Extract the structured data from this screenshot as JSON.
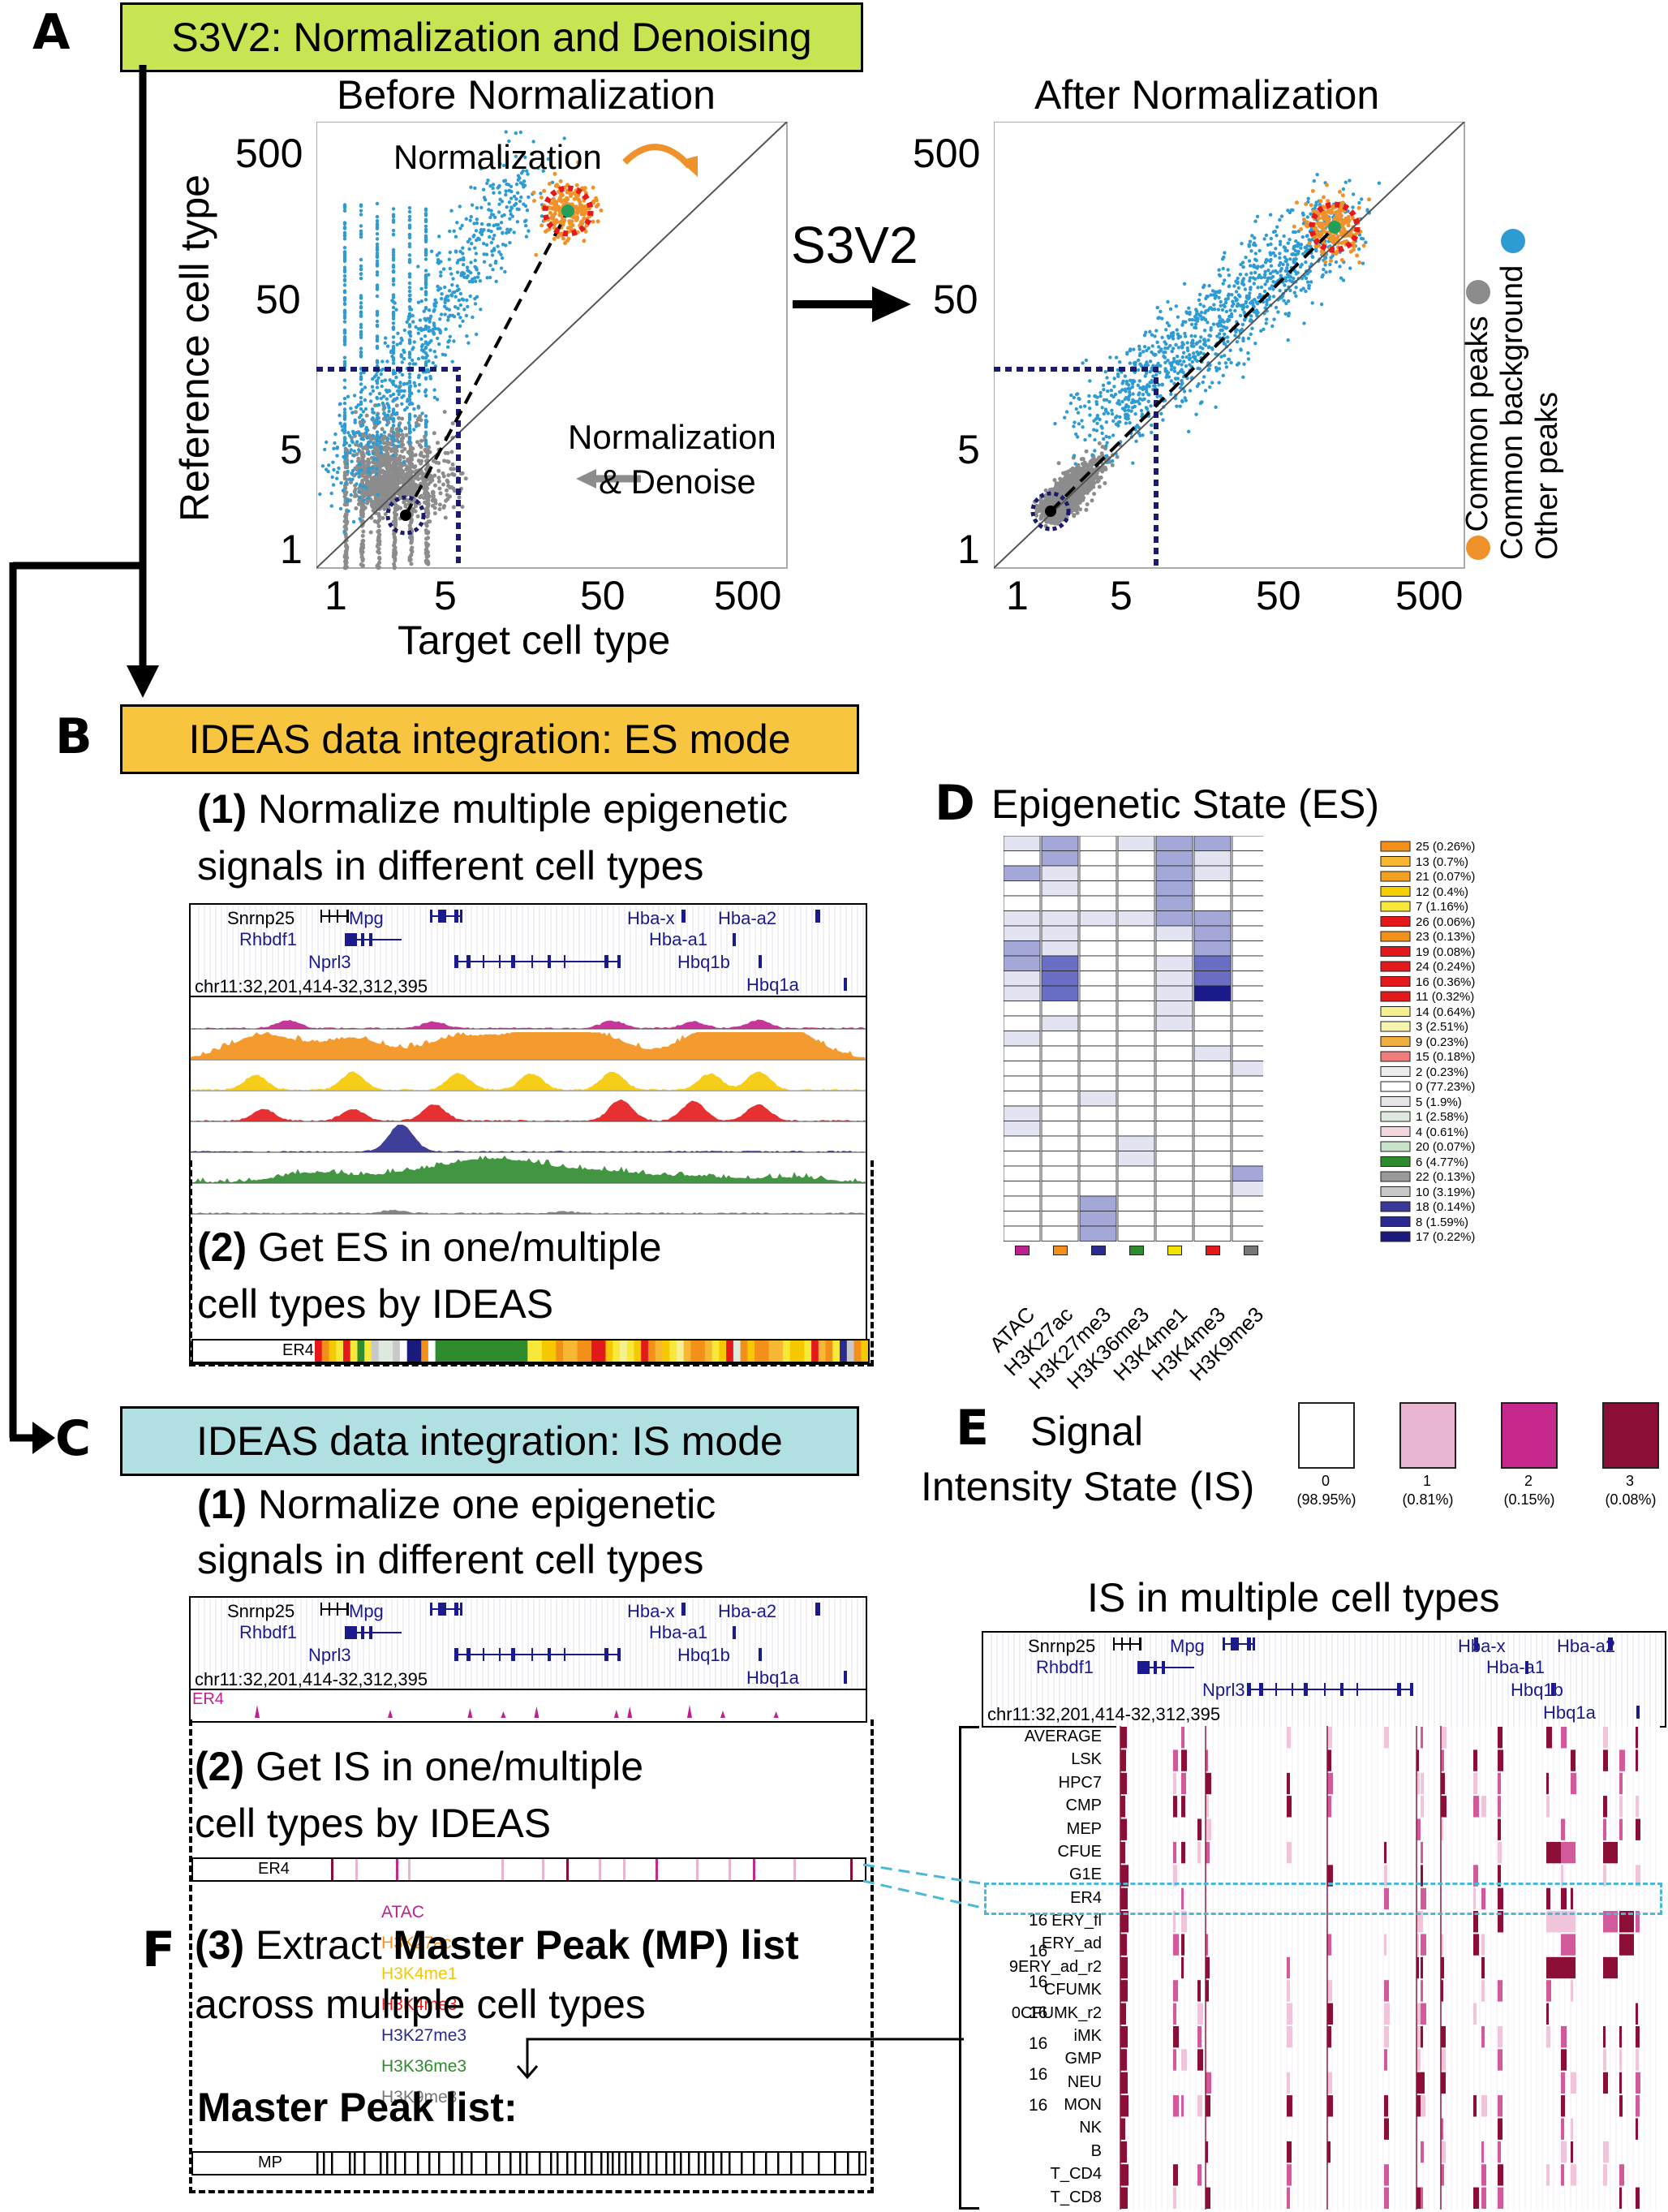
{
  "panels": {
    "A": "A",
    "B": "B",
    "C": "C",
    "D": "D",
    "E": "E",
    "F": "F"
  },
  "banners": {
    "a": "S3V2: Normalization and Denoising",
    "b": "IDEAS data integration: ES mode",
    "c": "IDEAS data integration: IS mode"
  },
  "colors": {
    "banner_a": "#c7e552",
    "banner_b": "#f8c541",
    "banner_c": "#b1e0e3",
    "common_peaks": "#f0922b",
    "common_bg": "#8c8c8c",
    "other_peaks": "#2f9bd3"
  },
  "scatter": {
    "before_title": "Before Normalization",
    "after_title": "After Normalization",
    "ylabel": "Reference cell type",
    "xlabel": "Target cell type",
    "yticks": [
      "500",
      "50",
      "5",
      "1"
    ],
    "xticks": [
      "1",
      "5",
      "50",
      "500"
    ],
    "norm_label": "Normalization",
    "norm_denoise_1": "Normalization",
    "norm_denoise_2": "& Denoise",
    "arrow_label": "S3V2",
    "legend": [
      "Common peaks",
      "Common background",
      "Other peaks"
    ]
  },
  "panel_b": {
    "step1_num": "(1)",
    "step1_a": "Normalize multiple epigenetic",
    "step1_b": "signals in different cell types",
    "step2_num": "(2)",
    "step2_a": "Get ES in one/multiple",
    "step2_b": "cell types by IDEAS",
    "coord": "chr11:32,201,414-32,312,395",
    "tracks": [
      {
        "name": "ATAC",
        "color": "#c0208f",
        "max": "16"
      },
      {
        "name": "H3K27ac",
        "color": "#f39019",
        "max": "16"
      },
      {
        "name": "H3K4me1",
        "color": "#f5c800",
        "max": "16"
      },
      {
        "name": "H3K4me3",
        "color": "#e3191c",
        "max": "16"
      },
      {
        "name": "H3K27me3",
        "color": "#2a2a8f",
        "max": "16"
      },
      {
        "name": "H3K36me3",
        "color": "#2e8b2e",
        "max": "16"
      },
      {
        "name": "H3K9me3",
        "color": "#777777",
        "max": "16"
      }
    ],
    "es_track": "ER4"
  },
  "genes": {
    "snrnp25": "Snrnp25",
    "rhbdf1": "Rhbdf1",
    "mpg": "Mpg",
    "nprl3": "Nprl3",
    "hbax": "Hba-x",
    "hbaa2": "Hba-a2",
    "hbaa1": "Hba-a1",
    "hbq1b": "Hbq1b",
    "hbq1a": "Hbq1a"
  },
  "panel_d": {
    "title": "Epigenetic State (ES)",
    "columns": [
      "ATAC",
      "H3K27ac",
      "H3K27me3",
      "H3K36me3",
      "H3K4me1",
      "H3K4me3",
      "H3K9me3"
    ],
    "column_colors": [
      "#c0208f",
      "#f39019",
      "#2a2a8f",
      "#2e8b2e",
      "#f5e300",
      "#e3191c",
      "#777777"
    ],
    "states": [
      {
        "label": "25 (0.26%)",
        "color": "#f39019"
      },
      {
        "label": "13 (0.7%)",
        "color": "#f7b733"
      },
      {
        "label": "21 (0.07%)",
        "color": "#f4a020"
      },
      {
        "label": "12 (0.4%)",
        "color": "#f5d000"
      },
      {
        "label": "7 (1.16%)",
        "color": "#f7e83a"
      },
      {
        "label": "26 (0.06%)",
        "color": "#e3191c"
      },
      {
        "label": "23 (0.13%)",
        "color": "#f39019"
      },
      {
        "label": "19 (0.08%)",
        "color": "#e3191c"
      },
      {
        "label": "24 (0.24%)",
        "color": "#e3191c"
      },
      {
        "label": "16 (0.36%)",
        "color": "#e3191c"
      },
      {
        "label": "11 (0.32%)",
        "color": "#e3191c"
      },
      {
        "label": "14 (0.64%)",
        "color": "#f7f090"
      },
      {
        "label": "3 (2.51%)",
        "color": "#f7f4b0"
      },
      {
        "label": "9 (0.23%)",
        "color": "#f0b040"
      },
      {
        "label": "15 (0.18%)",
        "color": "#f07c7c"
      },
      {
        "label": "2 (0.23%)",
        "color": "#ededed"
      },
      {
        "label": "0 (77.23%)",
        "color": "#ffffff"
      },
      {
        "label": "5 (1.9%)",
        "color": "#e6e6e6"
      },
      {
        "label": "1 (2.58%)",
        "color": "#dde9dd"
      },
      {
        "label": "4 (0.61%)",
        "color": "#f4d7dd"
      },
      {
        "label": "20 (0.07%)",
        "color": "#c9e3c9"
      },
      {
        "label": "6 (4.77%)",
        "color": "#2e8b2e"
      },
      {
        "label": "22 (0.13%)",
        "color": "#9a9a9a"
      },
      {
        "label": "10 (3.19%)",
        "color": "#c8c8c8"
      },
      {
        "label": "18 (0.14%)",
        "color": "#3a3a9a"
      },
      {
        "label": "8 (1.59%)",
        "color": "#2a2a8f"
      },
      {
        "label": "17 (0.22%)",
        "color": "#1a1a7c"
      }
    ],
    "matrix": [
      [
        1,
        2,
        0,
        1,
        2,
        2,
        0
      ],
      [
        0,
        2,
        0,
        0,
        2,
        1,
        0
      ],
      [
        2,
        1,
        0,
        0,
        2,
        1,
        0
      ],
      [
        0,
        1,
        0,
        0,
        2,
        0,
        0
      ],
      [
        0,
        0,
        0,
        0,
        2,
        0,
        0
      ],
      [
        1,
        1,
        1,
        1,
        2,
        2,
        0
      ],
      [
        1,
        1,
        0,
        0,
        1,
        2,
        0
      ],
      [
        2,
        1,
        0,
        0,
        0,
        2,
        0
      ],
      [
        2,
        3,
        0,
        0,
        1,
        3,
        0
      ],
      [
        1,
        3,
        0,
        0,
        1,
        3,
        0
      ],
      [
        1,
        3,
        0,
        0,
        1,
        4,
        0
      ],
      [
        0,
        0,
        0,
        0,
        1,
        0,
        0
      ],
      [
        0,
        1,
        0,
        0,
        1,
        0,
        0
      ],
      [
        1,
        0,
        0,
        0,
        0,
        0,
        0
      ],
      [
        0,
        0,
        0,
        0,
        0,
        1,
        0
      ],
      [
        0,
        0,
        0,
        0,
        0,
        0,
        1
      ],
      [
        0,
        0,
        0,
        0,
        0,
        0,
        0
      ],
      [
        0,
        0,
        1,
        0,
        0,
        0,
        0
      ],
      [
        1,
        0,
        0,
        0,
        0,
        0,
        0
      ],
      [
        1,
        0,
        0,
        0,
        0,
        0,
        0
      ],
      [
        0,
        0,
        0,
        1,
        0,
        0,
        0
      ],
      [
        0,
        0,
        0,
        1,
        0,
        0,
        0
      ],
      [
        0,
        0,
        0,
        0,
        0,
        0,
        2
      ],
      [
        0,
        0,
        0,
        0,
        0,
        0,
        1
      ],
      [
        0,
        0,
        2,
        0,
        0,
        0,
        0
      ],
      [
        0,
        0,
        2,
        0,
        0,
        0,
        0
      ],
      [
        0,
        0,
        2,
        0,
        0,
        0,
        0
      ]
    ]
  },
  "panel_e": {
    "title_1": "Signal",
    "title_2": "Intensity State (IS)",
    "states": [
      {
        "num": "0",
        "pct": "(98.95%)",
        "color": "#ffffff"
      },
      {
        "num": "1",
        "pct": "(0.81%)",
        "color": "#e8b4d0"
      },
      {
        "num": "2",
        "pct": "(0.15%)",
        "color": "#c7288e"
      },
      {
        "num": "3",
        "pct": "(0.08%)",
        "color": "#8b0e36"
      }
    ]
  },
  "panel_c": {
    "step1_num": "(1)",
    "step1_a": "Normalize one epigenetic",
    "step1_b": "signals in different cell types",
    "step2_num": "(2)",
    "step2_a": "Get IS in one/multiple",
    "step2_b": "cell types by IDEAS",
    "step3_num": "(3)",
    "step3_pre": "Extract",
    "step3_bold": "Master Peak (MP) list",
    "step3_b": "across multiple cell types",
    "master_label": "Master Peak list:",
    "coord": "chr11:32,201,414-32,312,395",
    "signal_track": "ER4",
    "is_track": "ER4",
    "mp_track": "MP"
  },
  "is_multi": {
    "title": "IS in multiple cell types",
    "coord": "chr11:32,201,414-32,312,395",
    "cell_types": [
      "AVERAGE",
      "LSK",
      "HPC7",
      "CMP",
      "MEP",
      "CFUE",
      "G1E",
      "ER4",
      "ERY_fl",
      "ERY_ad",
      "9ERY_ad_r2",
      "CFUMK",
      "0CFUMK_r2",
      "iMK",
      "GMP",
      "NEU",
      "MON",
      "NK",
      "B",
      "T_CD4",
      "T_CD8"
    ]
  }
}
